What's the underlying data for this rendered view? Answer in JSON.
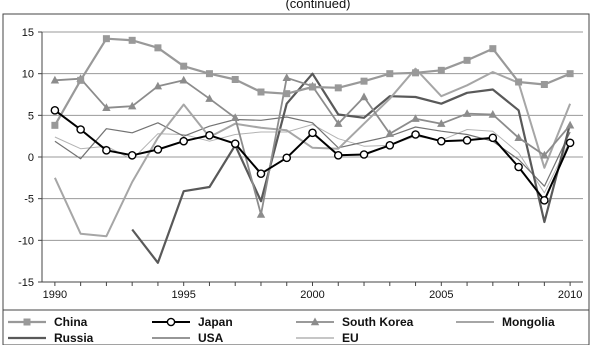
{
  "chart_data": {
    "type": "line",
    "title": "(continued)",
    "xlabel": "",
    "ylabel": "",
    "x_ticks": [
      "1990",
      "1995",
      "2000",
      "2005",
      "2010"
    ],
    "y_ticks": [
      "15",
      "10",
      "5",
      "0",
      "-5",
      "-10",
      "-15"
    ],
    "xlim": [
      1989.5,
      2010.5
    ],
    "ylim": [
      -15,
      15
    ],
    "grid": "horizontal",
    "legend_position": "bottom",
    "x": [
      1990,
      1991,
      1992,
      1993,
      1994,
      1995,
      1996,
      1997,
      1998,
      1999,
      2000,
      2001,
      2002,
      2003,
      2004,
      2005,
      2006,
      2007,
      2008,
      2009,
      2010
    ],
    "series": [
      {
        "name": "China",
        "color": "#999999",
        "width": 2.2,
        "marker": "square",
        "values": [
          3.8,
          9.2,
          14.2,
          14.0,
          13.1,
          10.9,
          10.0,
          9.3,
          7.8,
          7.6,
          8.4,
          8.3,
          9.1,
          10.0,
          10.1,
          10.4,
          11.6,
          13.0,
          9.0,
          8.7,
          10.0
        ]
      },
      {
        "name": "Japan",
        "color": "#000000",
        "width": 2.0,
        "marker": "circle",
        "values": [
          5.6,
          3.3,
          0.8,
          0.2,
          0.9,
          1.9,
          2.6,
          1.6,
          -2.0,
          -0.1,
          2.9,
          0.2,
          0.3,
          1.4,
          2.7,
          1.9,
          2.0,
          2.3,
          -1.2,
          -5.2,
          1.7
        ]
      },
      {
        "name": "South Korea",
        "color": "#8c8c8c",
        "width": 1.8,
        "marker": "triangle",
        "values": [
          9.2,
          9.4,
          5.9,
          6.1,
          8.5,
          9.2,
          7.0,
          4.7,
          -6.9,
          9.5,
          8.5,
          4.0,
          7.2,
          2.8,
          4.6,
          4.0,
          5.2,
          5.1,
          2.3,
          0.2,
          3.8
        ]
      },
      {
        "name": "Mongolia",
        "color": "#a6a6a6",
        "width": 2.0,
        "marker": "none",
        "values": [
          -2.5,
          -9.2,
          -9.5,
          -3.0,
          2.3,
          6.3,
          2.4,
          4.0,
          3.5,
          3.2,
          1.1,
          1.0,
          4.0,
          7.0,
          10.6,
          7.3,
          8.6,
          10.2,
          8.9,
          -1.3,
          6.4
        ]
      },
      {
        "name": "Russia",
        "color": "#595959",
        "width": 2.2,
        "marker": "none",
        "values": [
          null,
          null,
          null,
          -8.7,
          -12.7,
          -4.1,
          -3.6,
          1.4,
          -5.3,
          6.4,
          10.0,
          5.1,
          4.7,
          7.3,
          7.2,
          6.4,
          7.7,
          8.1,
          5.6,
          -7.8,
          4.0
        ]
      },
      {
        "name": "USA",
        "color": "#737373",
        "width": 1.2,
        "marker": "none",
        "values": [
          1.9,
          -0.2,
          3.4,
          2.9,
          4.1,
          2.5,
          3.7,
          4.5,
          4.4,
          4.8,
          4.1,
          1.1,
          1.8,
          2.5,
          3.6,
          3.1,
          2.7,
          1.9,
          -0.3,
          -3.5,
          3.0
        ]
      },
      {
        "name": "EU",
        "color": "#b3b3b3",
        "width": 1.0,
        "marker": "none",
        "values": [
          2.4,
          1.0,
          1.3,
          -0.3,
          2.8,
          2.7,
          1.9,
          2.7,
          3.0,
          3.0,
          3.9,
          2.2,
          1.3,
          1.4,
          2.5,
          2.0,
          3.3,
          3.1,
          0.5,
          -4.3,
          2.0
        ]
      }
    ]
  }
}
